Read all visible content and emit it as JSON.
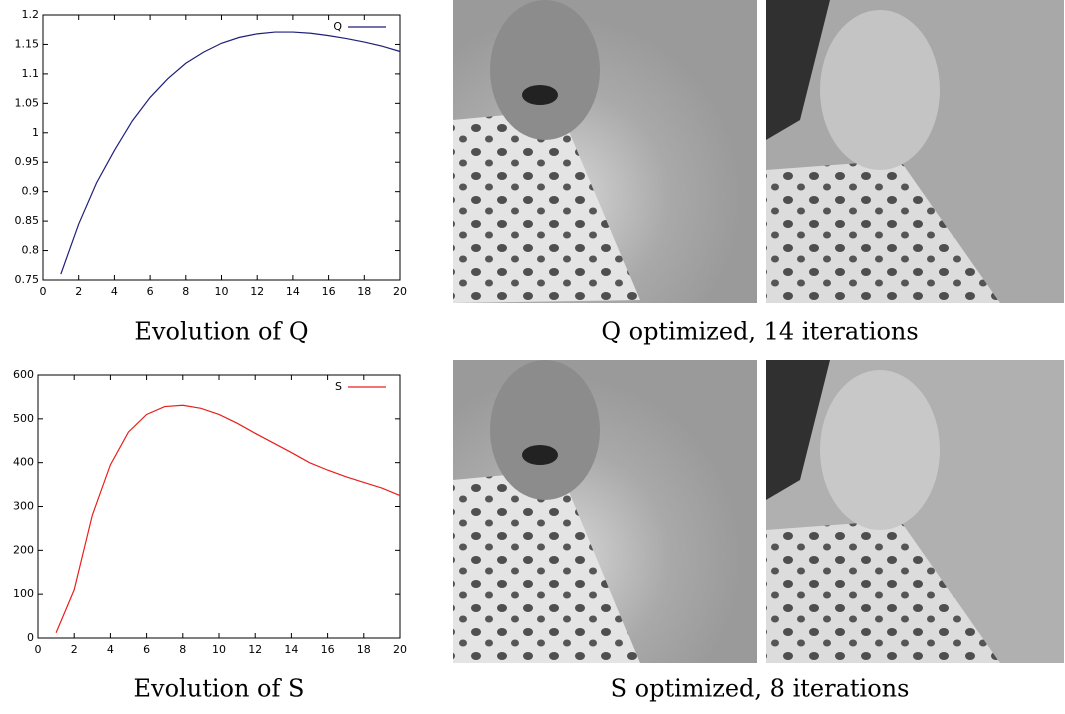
{
  "chart_data": [
    {
      "type": "line",
      "title": "Evolution of Q",
      "x": [
        1,
        2,
        3,
        4,
        5,
        6,
        7,
        8,
        9,
        10,
        11,
        12,
        13,
        14,
        15,
        16,
        17,
        18,
        19,
        20
      ],
      "series": [
        {
          "name": "Q",
          "color": "#1f1f7a",
          "values": [
            0.76,
            0.845,
            0.915,
            0.97,
            1.02,
            1.06,
            1.092,
            1.118,
            1.137,
            1.152,
            1.162,
            1.168,
            1.171,
            1.171,
            1.169,
            1.165,
            1.16,
            1.154,
            1.147,
            1.138
          ]
        }
      ],
      "xlim": [
        0,
        20
      ],
      "xticks": [
        0,
        2,
        4,
        6,
        8,
        10,
        12,
        14,
        16,
        18,
        20
      ],
      "ylim": [
        0.75,
        1.2
      ],
      "yticks": [
        0.75,
        0.8,
        0.85,
        0.9,
        0.95,
        1,
        1.05,
        1.1,
        1.15,
        1.2
      ],
      "legend": "top-right",
      "grid": false
    },
    {
      "type": "line",
      "title": "Evolution of S",
      "x": [
        1,
        2,
        3,
        4,
        5,
        6,
        7,
        8,
        9,
        10,
        11,
        12,
        13,
        14,
        15,
        16,
        17,
        18,
        19,
        20
      ],
      "series": [
        {
          "name": "S",
          "color": "#e8201c",
          "values": [
            12,
            110,
            280,
            395,
            470,
            510,
            528,
            531,
            524,
            510,
            490,
            467,
            445,
            423,
            400,
            383,
            368,
            355,
            342,
            325
          ]
        }
      ],
      "xlim": [
        0,
        20
      ],
      "xticks": [
        0,
        2,
        4,
        6,
        8,
        10,
        12,
        14,
        16,
        18,
        20
      ],
      "ylim": [
        0,
        600
      ],
      "yticks": [
        0,
        100,
        200,
        300,
        400,
        500,
        600
      ],
      "legend": "top-right",
      "grid": false
    }
  ],
  "image_panels": [
    {
      "caption": "Q optimized, 14 iterations"
    },
    {
      "caption": "S optimized, 8 iterations"
    }
  ]
}
